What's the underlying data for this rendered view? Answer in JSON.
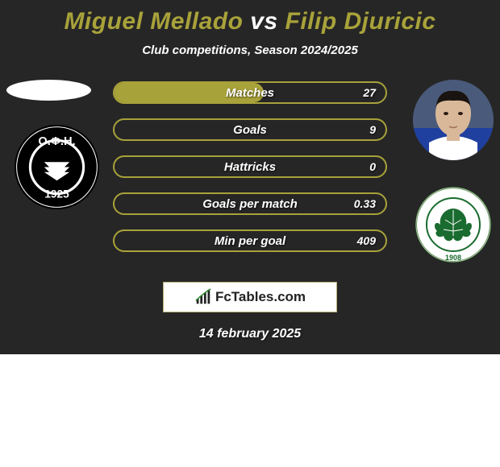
{
  "title": {
    "player1": "Miguel Mellado",
    "vs": "vs",
    "player2": "Filip Djuricic"
  },
  "subtitle": "Club competitions, Season 2024/2025",
  "date": "14 february 2025",
  "logo_text": "FcTables.com",
  "colors": {
    "background": "#262626",
    "accent": "#a8a23a",
    "text": "#ffffff"
  },
  "stats": [
    {
      "label": "Matches",
      "value": "27",
      "fill_pct": 55
    },
    {
      "label": "Goals",
      "value": "9",
      "fill_pct": 0
    },
    {
      "label": "Hattricks",
      "value": "0",
      "fill_pct": 0
    },
    {
      "label": "Goals per match",
      "value": "0.33",
      "fill_pct": 0
    },
    {
      "label": "Min per goal",
      "value": "409",
      "fill_pct": 0
    }
  ],
  "club1": {
    "name": "OFI Crete",
    "year": "1925",
    "text": "Ο.Φ.Η.",
    "bg": "#ffffff",
    "fg": "#000000"
  },
  "club2": {
    "name": "Panathinaikos",
    "year": "1908",
    "bg": "#ffffff",
    "fg": "#1a6b2f"
  }
}
